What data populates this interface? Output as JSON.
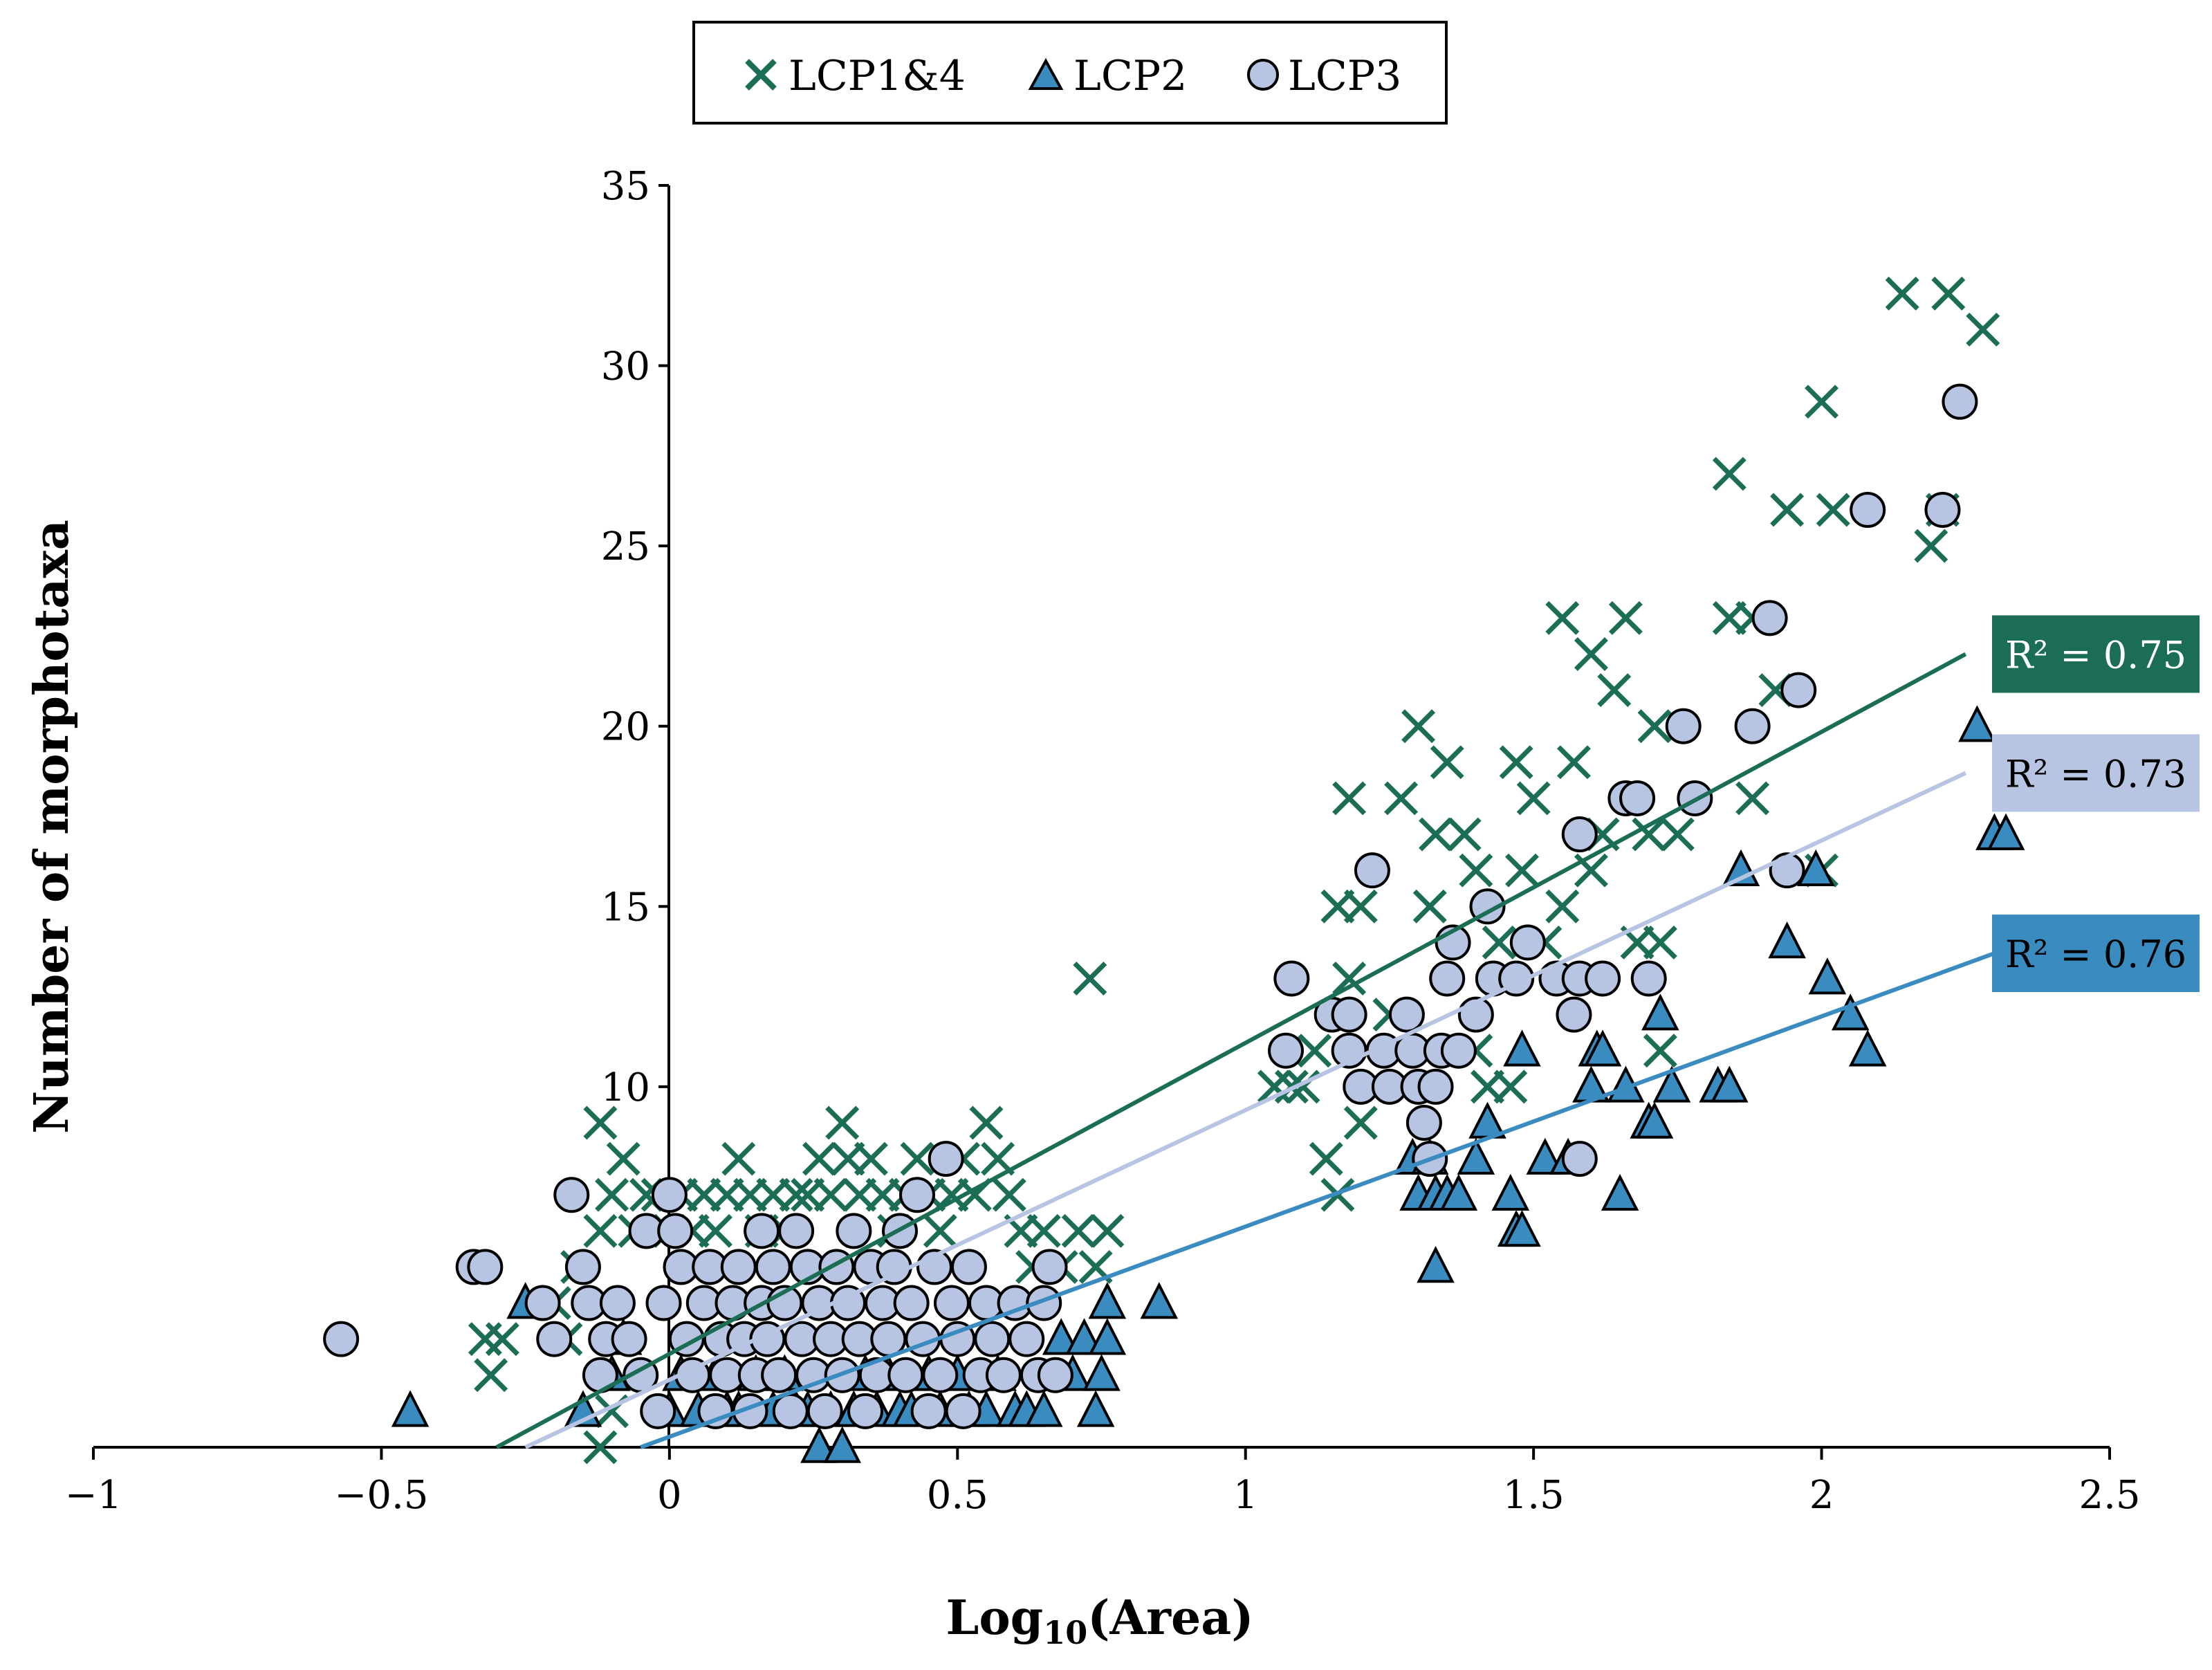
{
  "chart_data": {
    "type": "scatter",
    "title": "",
    "xlabel_main": "Log",
    "xlabel_sub": "10",
    "xlabel_tail": "(Area)",
    "ylabel": "Number of morphotaxa",
    "xlim": [
      -1,
      2.5
    ],
    "ylim": [
      0,
      35
    ],
    "xticks": [
      -1,
      -0.5,
      0,
      0.5,
      1,
      1.5,
      2,
      2.5
    ],
    "xtick_labels": [
      "−1",
      "−0.5",
      "0",
      "0.5",
      "1",
      "1.5",
      "2",
      "2.5"
    ],
    "yticks": [
      10,
      15,
      20,
      25,
      30,
      35
    ],
    "ytick_labels": [
      "10",
      "15",
      "20",
      "25",
      "30",
      "35"
    ],
    "legend": {
      "position": "top-center",
      "entries": [
        "LCP1&4",
        "LCP2",
        "LCP3"
      ]
    },
    "series": [
      {
        "name": "LCP1&4",
        "marker": "x",
        "color": "#1b6e55",
        "points": [
          [
            -0.32,
            3
          ],
          [
            -0.31,
            2
          ],
          [
            -0.29,
            3
          ],
          [
            -0.2,
            4
          ],
          [
            -0.18,
            3
          ],
          [
            -0.16,
            5
          ],
          [
            -0.12,
            6
          ],
          [
            -0.12,
            9
          ],
          [
            -0.1,
            7
          ],
          [
            -0.08,
            8
          ],
          [
            -0.06,
            6
          ],
          [
            -0.04,
            7
          ],
          [
            -0.02,
            7
          ],
          [
            0.0,
            6
          ],
          [
            0.02,
            7
          ],
          [
            0.04,
            6
          ],
          [
            0.06,
            7
          ],
          [
            0.08,
            6
          ],
          [
            0.1,
            7
          ],
          [
            0.12,
            8
          ],
          [
            0.14,
            7
          ],
          [
            0.16,
            6
          ],
          [
            0.18,
            7
          ],
          [
            0.2,
            6
          ],
          [
            0.22,
            7
          ],
          [
            0.24,
            7
          ],
          [
            0.26,
            8
          ],
          [
            0.28,
            7
          ],
          [
            0.3,
            9
          ],
          [
            0.31,
            8
          ],
          [
            0.33,
            7
          ],
          [
            0.35,
            8
          ],
          [
            0.37,
            7
          ],
          [
            0.39,
            6
          ],
          [
            0.41,
            7
          ],
          [
            0.43,
            8
          ],
          [
            0.45,
            7
          ],
          [
            0.47,
            6
          ],
          [
            0.49,
            7
          ],
          [
            0.51,
            8
          ],
          [
            0.53,
            7
          ],
          [
            0.55,
            9
          ],
          [
            0.57,
            8
          ],
          [
            0.59,
            7
          ],
          [
            0.61,
            6
          ],
          [
            0.63,
            5
          ],
          [
            0.65,
            6
          ],
          [
            0.68,
            5
          ],
          [
            0.71,
            6
          ],
          [
            0.74,
            5
          ],
          [
            0.76,
            6
          ],
          [
            0.73,
            13
          ],
          [
            -0.12,
            0
          ],
          [
            -0.1,
            1
          ],
          [
            1.05,
            10
          ],
          [
            1.08,
            10
          ],
          [
            1.1,
            10
          ],
          [
            1.12,
            11
          ],
          [
            1.14,
            8
          ],
          [
            1.16,
            15
          ],
          [
            1.16,
            7
          ],
          [
            1.18,
            18
          ],
          [
            1.18,
            13
          ],
          [
            1.2,
            15
          ],
          [
            1.2,
            9
          ],
          [
            1.22,
            10
          ],
          [
            1.25,
            12
          ],
          [
            1.27,
            18
          ],
          [
            1.3,
            20
          ],
          [
            1.32,
            15
          ],
          [
            1.33,
            17
          ],
          [
            1.35,
            19
          ],
          [
            1.38,
            17
          ],
          [
            1.4,
            16
          ],
          [
            1.4,
            11
          ],
          [
            1.42,
            10
          ],
          [
            1.44,
            14
          ],
          [
            1.44,
            13
          ],
          [
            1.46,
            10
          ],
          [
            1.47,
            19
          ],
          [
            1.48,
            16
          ],
          [
            1.5,
            18
          ],
          [
            1.52,
            14
          ],
          [
            1.55,
            15
          ],
          [
            1.55,
            23
          ],
          [
            1.57,
            19
          ],
          [
            1.6,
            22
          ],
          [
            1.6,
            16
          ],
          [
            1.62,
            17
          ],
          [
            1.64,
            21
          ],
          [
            1.66,
            23
          ],
          [
            1.68,
            14
          ],
          [
            1.7,
            17
          ],
          [
            1.71,
            20
          ],
          [
            1.72,
            14
          ],
          [
            1.72,
            11
          ],
          [
            1.75,
            17
          ],
          [
            1.84,
            27
          ],
          [
            1.84,
            23
          ],
          [
            1.88,
            23
          ],
          [
            1.88,
            18
          ],
          [
            1.92,
            21
          ],
          [
            1.94,
            26
          ],
          [
            2.0,
            29
          ],
          [
            2.02,
            26
          ],
          [
            2.0,
            16
          ],
          [
            2.14,
            32
          ],
          [
            2.19,
            25
          ],
          [
            2.21,
            26
          ],
          [
            2.22,
            32
          ],
          [
            2.28,
            31
          ]
        ]
      },
      {
        "name": "LCP2",
        "marker": "triangle",
        "color": "#3a8bbf",
        "points": [
          [
            -0.45,
            1
          ],
          [
            -0.25,
            4
          ],
          [
            -0.15,
            1
          ],
          [
            -0.1,
            2
          ],
          [
            -0.08,
            3
          ],
          [
            0.0,
            1
          ],
          [
            0.02,
            2
          ],
          [
            0.05,
            1
          ],
          [
            0.08,
            2
          ],
          [
            0.1,
            1
          ],
          [
            0.12,
            1
          ],
          [
            0.15,
            2
          ],
          [
            0.18,
            1
          ],
          [
            0.2,
            2
          ],
          [
            0.22,
            1
          ],
          [
            0.24,
            1
          ],
          [
            0.26,
            0
          ],
          [
            0.28,
            1
          ],
          [
            0.3,
            0
          ],
          [
            0.32,
            1
          ],
          [
            0.34,
            2
          ],
          [
            0.36,
            1
          ],
          [
            0.38,
            2
          ],
          [
            0.4,
            1
          ],
          [
            0.42,
            1
          ],
          [
            0.45,
            2
          ],
          [
            0.47,
            1
          ],
          [
            0.5,
            2
          ],
          [
            0.52,
            1
          ],
          [
            0.55,
            1
          ],
          [
            0.57,
            2
          ],
          [
            0.6,
            1
          ],
          [
            0.62,
            1
          ],
          [
            0.65,
            1
          ],
          [
            0.68,
            3
          ],
          [
            0.7,
            2
          ],
          [
            0.72,
            3
          ],
          [
            0.74,
            1
          ],
          [
            0.75,
            2
          ],
          [
            0.76,
            3
          ],
          [
            0.76,
            4
          ],
          [
            0.85,
            4
          ],
          [
            1.29,
            8
          ],
          [
            1.3,
            7
          ],
          [
            1.32,
            8
          ],
          [
            1.33,
            7
          ],
          [
            1.33,
            5
          ],
          [
            1.35,
            7
          ],
          [
            1.37,
            7
          ],
          [
            1.4,
            8
          ],
          [
            1.42,
            9
          ],
          [
            1.46,
            7
          ],
          [
            1.47,
            6
          ],
          [
            1.48,
            6
          ],
          [
            1.48,
            11
          ],
          [
            1.52,
            8
          ],
          [
            1.56,
            8
          ],
          [
            1.6,
            10
          ],
          [
            1.61,
            11
          ],
          [
            1.62,
            11
          ],
          [
            1.65,
            7
          ],
          [
            1.66,
            10
          ],
          [
            1.7,
            9
          ],
          [
            1.71,
            9
          ],
          [
            1.72,
            12
          ],
          [
            1.74,
            10
          ],
          [
            1.82,
            10
          ],
          [
            1.84,
            10
          ],
          [
            1.86,
            16
          ],
          [
            1.94,
            14
          ],
          [
            1.99,
            16
          ],
          [
            2.01,
            13
          ],
          [
            2.05,
            12
          ],
          [
            2.08,
            11
          ],
          [
            2.27,
            20
          ],
          [
            2.3,
            17
          ],
          [
            2.32,
            17
          ]
        ]
      },
      {
        "name": "LCP3",
        "marker": "circle",
        "color": "#b7c4e2",
        "points": [
          [
            -0.57,
            3
          ],
          [
            -0.34,
            5
          ],
          [
            -0.32,
            5
          ],
          [
            -0.22,
            4
          ],
          [
            -0.2,
            3
          ],
          [
            -0.17,
            7
          ],
          [
            -0.15,
            5
          ],
          [
            -0.14,
            4
          ],
          [
            -0.12,
            2
          ],
          [
            -0.11,
            3
          ],
          [
            -0.09,
            4
          ],
          [
            -0.07,
            3
          ],
          [
            -0.05,
            2
          ],
          [
            -0.04,
            6
          ],
          [
            -0.02,
            1
          ],
          [
            -0.01,
            4
          ],
          [
            0.0,
            7
          ],
          [
            0.01,
            6
          ],
          [
            0.02,
            5
          ],
          [
            0.03,
            3
          ],
          [
            0.04,
            2
          ],
          [
            0.06,
            4
          ],
          [
            0.07,
            5
          ],
          [
            0.08,
            1
          ],
          [
            0.09,
            3
          ],
          [
            0.1,
            2
          ],
          [
            0.11,
            4
          ],
          [
            0.12,
            5
          ],
          [
            0.13,
            3
          ],
          [
            0.14,
            1
          ],
          [
            0.15,
            2
          ],
          [
            0.16,
            4
          ],
          [
            0.16,
            6
          ],
          [
            0.17,
            3
          ],
          [
            0.18,
            5
          ],
          [
            0.19,
            2
          ],
          [
            0.2,
            4
          ],
          [
            0.21,
            1
          ],
          [
            0.22,
            6
          ],
          [
            0.23,
            3
          ],
          [
            0.24,
            5
          ],
          [
            0.25,
            2
          ],
          [
            0.26,
            4
          ],
          [
            0.27,
            1
          ],
          [
            0.28,
            3
          ],
          [
            0.29,
            5
          ],
          [
            0.3,
            2
          ],
          [
            0.31,
            4
          ],
          [
            0.32,
            6
          ],
          [
            0.33,
            3
          ],
          [
            0.34,
            1
          ],
          [
            0.35,
            5
          ],
          [
            0.36,
            2
          ],
          [
            0.37,
            4
          ],
          [
            0.38,
            3
          ],
          [
            0.39,
            5
          ],
          [
            0.4,
            6
          ],
          [
            0.41,
            2
          ],
          [
            0.42,
            4
          ],
          [
            0.43,
            7
          ],
          [
            0.44,
            3
          ],
          [
            0.45,
            1
          ],
          [
            0.46,
            5
          ],
          [
            0.47,
            2
          ],
          [
            0.48,
            8
          ],
          [
            0.49,
            4
          ],
          [
            0.5,
            3
          ],
          [
            0.51,
            1
          ],
          [
            0.52,
            5
          ],
          [
            0.54,
            2
          ],
          [
            0.55,
            4
          ],
          [
            0.56,
            3
          ],
          [
            0.58,
            2
          ],
          [
            0.6,
            4
          ],
          [
            0.62,
            3
          ],
          [
            0.64,
            2
          ],
          [
            0.65,
            4
          ],
          [
            0.66,
            5
          ],
          [
            0.67,
            2
          ],
          [
            1.07,
            11
          ],
          [
            1.08,
            13
          ],
          [
            1.15,
            12
          ],
          [
            1.18,
            12
          ],
          [
            1.18,
            11
          ],
          [
            1.2,
            10
          ],
          [
            1.22,
            16
          ],
          [
            1.24,
            11
          ],
          [
            1.25,
            10
          ],
          [
            1.28,
            12
          ],
          [
            1.29,
            11
          ],
          [
            1.3,
            10
          ],
          [
            1.31,
            9
          ],
          [
            1.32,
            8
          ],
          [
            1.33,
            10
          ],
          [
            1.34,
            11
          ],
          [
            1.35,
            13
          ],
          [
            1.36,
            14
          ],
          [
            1.37,
            11
          ],
          [
            1.4,
            12
          ],
          [
            1.42,
            15
          ],
          [
            1.43,
            13
          ],
          [
            1.47,
            13
          ],
          [
            1.49,
            14
          ],
          [
            1.54,
            13
          ],
          [
            1.57,
            12
          ],
          [
            1.58,
            13
          ],
          [
            1.58,
            8
          ],
          [
            1.58,
            17
          ],
          [
            1.62,
            13
          ],
          [
            1.66,
            18
          ],
          [
            1.68,
            18
          ],
          [
            1.7,
            13
          ],
          [
            1.76,
            20
          ],
          [
            1.78,
            18
          ],
          [
            1.88,
            20
          ],
          [
            1.91,
            23
          ],
          [
            1.94,
            16
          ],
          [
            1.96,
            21
          ],
          [
            2.08,
            26
          ],
          [
            2.21,
            26
          ],
          [
            2.24,
            29
          ]
        ]
      }
    ],
    "trendlines": [
      {
        "series": "LCP1&4",
        "color": "#1b6e55",
        "x_range": [
          -0.3,
          2.25
        ],
        "y_range": [
          0,
          22
        ],
        "label": "R² = 0.75",
        "label_bg": "#1b6e55",
        "label_color": "#ffffff"
      },
      {
        "series": "LCP3",
        "color": "#b7c4e2",
        "x_range": [
          -0.25,
          2.25
        ],
        "y_range": [
          0,
          18.7
        ],
        "label": "R² = 0.73",
        "label_bg": "#b7c4e2",
        "label_color": "#000000"
      },
      {
        "series": "LCP2",
        "color": "#3a8bbf",
        "x_range": [
          -0.05,
          2.3
        ],
        "y_range": [
          0,
          13.7
        ],
        "label": "R² = 0.76",
        "label_bg": "#3a8bbf",
        "label_color": "#000000"
      }
    ]
  }
}
